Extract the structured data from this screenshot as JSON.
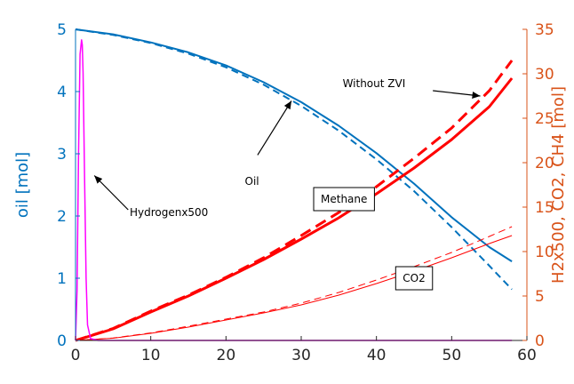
{
  "chart_data": {
    "type": "line",
    "title": "",
    "xlabel": "",
    "ylabel_left": "oil [mol]",
    "ylabel_right": "H2x500, CO2, CH4 [mol]",
    "xlim": [
      0,
      60
    ],
    "ylim_left": [
      0,
      5
    ],
    "ylim_right": [
      0,
      35
    ],
    "x_ticks": [
      "0",
      "10",
      "20",
      "30",
      "40",
      "50",
      "60"
    ],
    "y_left_ticks": [
      "0",
      "1",
      "2",
      "3",
      "4",
      "5"
    ],
    "y_right_ticks": [
      "0",
      "5",
      "10",
      "15",
      "20",
      "25",
      "30",
      "35"
    ],
    "colors": {
      "left_axis": "#0072BD",
      "right_axis": "#D95319",
      "oil": "#0072BD",
      "gas": "#FF0000",
      "hydrogen": "#FF00FF"
    },
    "series": [
      {
        "key": "oil_solid",
        "axis": "left",
        "style": "solid",
        "width": 2,
        "x": [
          0,
          5,
          10,
          15,
          20,
          25,
          30,
          35,
          40,
          45,
          50,
          55,
          58
        ],
        "y": [
          5.0,
          4.92,
          4.79,
          4.63,
          4.42,
          4.15,
          3.83,
          3.45,
          3.01,
          2.52,
          1.98,
          1.5,
          1.27
        ]
      },
      {
        "key": "oil_dashed",
        "axis": "left",
        "style": "dashed",
        "width": 2,
        "x": [
          0,
          5,
          10,
          15,
          20,
          25,
          30,
          35,
          40,
          45,
          50,
          55,
          58
        ],
        "y": [
          5.0,
          4.91,
          4.78,
          4.61,
          4.39,
          4.11,
          3.77,
          3.37,
          2.91,
          2.4,
          1.82,
          1.2,
          0.82
        ]
      },
      {
        "key": "methane_solid",
        "axis": "right",
        "style": "solid",
        "width": 3,
        "x": [
          0,
          5,
          10,
          15,
          20,
          25,
          30,
          35,
          40,
          45,
          50,
          55,
          58
        ],
        "y": [
          0,
          1.3,
          3.2,
          5.0,
          7.0,
          9.1,
          11.4,
          13.8,
          16.5,
          19.4,
          22.6,
          26.3,
          29.5
        ]
      },
      {
        "key": "methane_dashed",
        "axis": "right",
        "style": "dashed",
        "width": 3,
        "x": [
          0,
          5,
          10,
          15,
          20,
          25,
          30,
          35,
          40,
          45,
          50,
          55,
          58
        ],
        "y": [
          0,
          1.35,
          3.3,
          5.1,
          7.1,
          9.3,
          11.8,
          14.4,
          17.3,
          20.5,
          23.9,
          28.1,
          31.5
        ]
      },
      {
        "key": "co2_solid",
        "axis": "right",
        "style": "solid",
        "width": 1,
        "x": [
          0,
          5,
          10,
          15,
          20,
          25,
          30,
          35,
          40,
          45,
          50,
          55,
          58
        ],
        "y": [
          0,
          0.25,
          0.8,
          1.5,
          2.3,
          3.1,
          4.0,
          5.1,
          6.4,
          7.8,
          9.3,
          10.9,
          11.8
        ]
      },
      {
        "key": "co2_dashed",
        "axis": "right",
        "style": "dashed",
        "width": 1,
        "x": [
          0,
          5,
          10,
          15,
          20,
          25,
          30,
          35,
          40,
          45,
          50,
          55,
          58
        ],
        "y": [
          0,
          0.27,
          0.85,
          1.6,
          2.4,
          3.2,
          4.2,
          5.4,
          6.8,
          8.3,
          9.9,
          11.7,
          12.8
        ]
      },
      {
        "key": "hydrogen",
        "axis": "left",
        "style": "solid",
        "width": 1.5,
        "x": [
          0,
          0.2,
          0.4,
          0.6,
          0.8,
          0.9,
          1.0,
          1.2,
          1.4,
          1.6,
          2,
          3,
          10,
          20,
          40,
          58
        ],
        "y": [
          0,
          0.8,
          3.0,
          4.6,
          4.83,
          4.75,
          4.3,
          2.6,
          1.0,
          0.25,
          0.03,
          0,
          0,
          0,
          0,
          0
        ]
      }
    ],
    "annotations": [
      {
        "text": "Without ZVI",
        "x": 35.5,
        "y_right": 28.5,
        "box": false,
        "arrow_from": [
          47.5,
          28.1
        ],
        "arrow_to": [
          53.8,
          27.5
        ]
      },
      {
        "text": "Oil",
        "x": 22.5,
        "y_left": 2.5,
        "box": false,
        "arrow_from": [
          24.2,
          2.98
        ],
        "arrow_to": [
          28.7,
          3.85
        ]
      },
      {
        "text": "Hydrogenx500",
        "x": 7.2,
        "y_left": 2.0,
        "box": false,
        "arrow_from": [
          7.0,
          2.1
        ],
        "arrow_to": [
          2.5,
          2.65
        ]
      },
      {
        "text": "Methane",
        "x": 32.6,
        "y_right": 15.5,
        "box": true
      },
      {
        "text": "CO2",
        "x": 43.5,
        "y_right": 6.6,
        "box": true
      }
    ]
  }
}
